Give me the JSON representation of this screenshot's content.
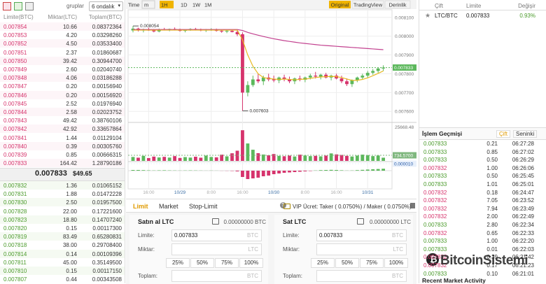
{
  "header": {
    "group_label": "gruplar",
    "decimals": "6 ondalık"
  },
  "order_book": {
    "columns": [
      "Limite(BTC)",
      "Miktar(LTC)",
      "Toplam(BTC)"
    ],
    "asks": [
      [
        "0.007854",
        "10.66",
        "0.08372364"
      ],
      [
        "0.007853",
        "4.20",
        "0.03298260"
      ],
      [
        "0.007852",
        "4.50",
        "0.03533400"
      ],
      [
        "0.007851",
        "2.37",
        "0.01860687"
      ],
      [
        "0.007850",
        "39.42",
        "0.30944700"
      ],
      [
        "0.007849",
        "2.60",
        "0.02040740"
      ],
      [
        "0.007848",
        "4.06",
        "0.03186288"
      ],
      [
        "0.007847",
        "0.20",
        "0.00156940"
      ],
      [
        "0.007846",
        "0.20",
        "0.00156920"
      ],
      [
        "0.007845",
        "2.52",
        "0.01976940"
      ],
      [
        "0.007844",
        "2.58",
        "0.02023752"
      ],
      [
        "0.007843",
        "49.42",
        "0.38760106"
      ],
      [
        "0.007842",
        "42.92",
        "0.33657864"
      ],
      [
        "0.007841",
        "1.44",
        "0.01129104"
      ],
      [
        "0.007840",
        "0.39",
        "0.00305760"
      ],
      [
        "0.007839",
        "0.85",
        "0.00666315"
      ],
      [
        "0.007833",
        "164.42",
        "1.28790186"
      ]
    ],
    "last_price": "0.007833",
    "last_usd": "$49.65",
    "bids": [
      [
        "0.007832",
        "1.36",
        "0.01065152"
      ],
      [
        "0.007831",
        "1.88",
        "0.01472228"
      ],
      [
        "0.007830",
        "2.50",
        "0.01957500"
      ],
      [
        "0.007828",
        "22.00",
        "0.17221600"
      ],
      [
        "0.007823",
        "18.80",
        "0.14707240"
      ],
      [
        "0.007820",
        "0.15",
        "0.00117300"
      ],
      [
        "0.007819",
        "83.49",
        "0.65280831"
      ],
      [
        "0.007818",
        "38.00",
        "0.29708400"
      ],
      [
        "0.007814",
        "0.14",
        "0.00109396"
      ],
      [
        "0.007811",
        "45.00",
        "0.35149500"
      ],
      [
        "0.007810",
        "0.15",
        "0.00117150"
      ],
      [
        "0.007807",
        "0.44",
        "0.00343508"
      ]
    ]
  },
  "chart_data": {
    "type": "candlestick",
    "toolbar": [
      "Time",
      "m",
      "1H",
      "1D",
      "1W",
      "1M"
    ],
    "views": [
      "Original",
      "TradingView",
      "Derinlik"
    ],
    "ylim": [
      0.00756,
      0.00814
    ],
    "yticks": [
      {
        "value": 0.0081,
        "label": "0.008100"
      },
      {
        "value": 0.008,
        "label": "0.008000"
      },
      {
        "value": 0.0079,
        "label": "0.007900"
      },
      {
        "value": 0.0078,
        "label": "0.007800"
      },
      {
        "value": 0.0077,
        "label": "0.007700"
      },
      {
        "value": 0.0076,
        "label": "0.007600"
      }
    ],
    "xticks": [
      {
        "value": 3,
        "label": "16:00"
      },
      {
        "value": 9,
        "label": "10/29"
      },
      {
        "value": 15,
        "label": "8:00"
      },
      {
        "value": 21,
        "label": "16:00"
      },
      {
        "value": 27,
        "label": "10/30"
      },
      {
        "value": 33,
        "label": "8:00"
      },
      {
        "value": 39,
        "label": "16:00"
      },
      {
        "value": 45,
        "label": "10/31"
      }
    ],
    "last_tag": {
      "value": 0.007833,
      "label": "0.007833"
    },
    "annotations": [
      {
        "x": 0,
        "value": 0.008054,
        "label": "0.008054"
      },
      {
        "x": 21,
        "value": 0.007603,
        "label": "0.007603"
      }
    ],
    "candles": [
      [
        0.00803,
        0.008054,
        0.00802,
        0.00804
      ],
      [
        0.00804,
        0.008045,
        0.008025,
        0.00803
      ],
      [
        0.00803,
        0.00804,
        0.00802,
        0.008035
      ],
      [
        0.008035,
        0.008045,
        0.008028,
        0.00803
      ],
      [
        0.00803,
        0.008038,
        0.00802,
        0.008025
      ],
      [
        0.008025,
        0.00804,
        0.00802,
        0.008036
      ],
      [
        0.008036,
        0.008044,
        0.00803,
        0.008032
      ],
      [
        0.008032,
        0.00804,
        0.008026,
        0.008038
      ],
      [
        0.008038,
        0.008046,
        0.00803,
        0.008034
      ],
      [
        0.008034,
        0.00804,
        0.008024,
        0.008028
      ],
      [
        0.008028,
        0.008036,
        0.00802,
        0.008032
      ],
      [
        0.008032,
        0.008042,
        0.008028,
        0.008038
      ],
      [
        0.008038,
        0.008044,
        0.00803,
        0.008034
      ],
      [
        0.008034,
        0.00804,
        0.008026,
        0.00803
      ],
      [
        0.00803,
        0.008038,
        0.008022,
        0.008034
      ],
      [
        0.008034,
        0.008042,
        0.008028,
        0.008036
      ],
      [
        0.008036,
        0.00804,
        0.008024,
        0.008028
      ],
      [
        0.008028,
        0.008034,
        0.008018,
        0.008024
      ],
      [
        0.008024,
        0.008032,
        0.008016,
        0.008028
      ],
      [
        0.008028,
        0.008034,
        0.00802,
        0.008022
      ],
      [
        0.008022,
        0.00803,
        0.008,
        0.00801
      ],
      [
        0.00801,
        0.00802,
        0.007603,
        0.0077
      ],
      [
        0.0077,
        0.00776,
        0.00768,
        0.00774
      ],
      [
        0.00774,
        0.00779,
        0.00773,
        0.00777
      ],
      [
        0.00777,
        0.0078,
        0.00775,
        0.00776
      ],
      [
        0.00776,
        0.00779,
        0.00774,
        0.00778
      ],
      [
        0.00778,
        0.0078,
        0.00776,
        0.00777
      ],
      [
        0.00777,
        0.00779,
        0.007755,
        0.007765
      ],
      [
        0.007765,
        0.007785,
        0.00775,
        0.00778
      ],
      [
        0.00778,
        0.007795,
        0.00776,
        0.00777
      ],
      [
        0.00777,
        0.007785,
        0.00775,
        0.00776
      ],
      [
        0.00776,
        0.00778,
        0.007745,
        0.007775
      ],
      [
        0.007775,
        0.00779,
        0.00776,
        0.007768
      ],
      [
        0.007768,
        0.007785,
        0.007755,
        0.00778
      ],
      [
        0.00778,
        0.0078,
        0.00777,
        0.00779
      ],
      [
        0.00779,
        0.00781,
        0.007775,
        0.007785
      ],
      [
        0.007785,
        0.0078,
        0.00777,
        0.007795
      ],
      [
        0.007795,
        0.007805,
        0.007775,
        0.00778
      ],
      [
        0.00778,
        0.007795,
        0.007765,
        0.00779
      ],
      [
        0.00779,
        0.0078,
        0.00777,
        0.007775
      ],
      [
        0.007775,
        0.00779,
        0.00775,
        0.00776
      ],
      [
        0.00776,
        0.007775,
        0.007735,
        0.007745
      ],
      [
        0.007745,
        0.00777,
        0.00773,
        0.007765
      ],
      [
        0.007765,
        0.007785,
        0.007755,
        0.00778
      ],
      [
        0.00778,
        0.0078,
        0.00777,
        0.00779
      ],
      [
        0.00779,
        0.007815,
        0.00778,
        0.007805
      ],
      [
        0.007805,
        0.007825,
        0.007795,
        0.007815
      ],
      [
        0.007815,
        0.007835,
        0.007805,
        0.007828
      ],
      [
        0.007828,
        0.007845,
        0.007815,
        0.007833
      ]
    ],
    "ma_long": [
      0.008035,
      0.008035,
      0.008035,
      0.008035,
      0.008035,
      0.008035,
      0.008035,
      0.008035,
      0.008035,
      0.008035,
      0.008035,
      0.008035,
      0.008035,
      0.008035,
      0.008035,
      0.008035,
      0.008035,
      0.008035,
      0.008035,
      0.008035,
      0.008035,
      0.00803,
      0.00802,
      0.008012,
      0.008005,
      0.007998,
      0.007992,
      0.007986,
      0.007981,
      0.007976,
      0.007972,
      0.007968,
      0.007964,
      0.007961,
      0.007958,
      0.007955,
      0.007952,
      0.00795,
      0.007948,
      0.007946,
      0.007944,
      0.007942,
      0.00794,
      0.007938,
      0.007936,
      0.007934,
      0.007932,
      0.00793,
      0.007928
    ],
    "ma_short": [
      0.008032,
      0.008032,
      0.008032,
      0.008032,
      0.008032,
      0.008032,
      0.008032,
      0.008032,
      0.008032,
      0.008032,
      0.008032,
      0.008032,
      0.008032,
      0.008032,
      0.008032,
      0.008032,
      0.008032,
      0.008032,
      0.008032,
      0.008032,
      0.008032,
      0.00798,
      0.0079,
      0.00784,
      0.0078,
      0.00778,
      0.007775,
      0.007772,
      0.00777,
      0.007772,
      0.00777,
      0.007768,
      0.00777,
      0.007772,
      0.007775,
      0.00778,
      0.007783,
      0.007785,
      0.007786,
      0.007785,
      0.00778,
      0.007772,
      0.007765,
      0.007765,
      0.00777,
      0.007778,
      0.00779,
      0.007802,
      0.007815
    ],
    "ma_long_color": "#c2418f",
    "ma_short_color": "#e8b923",
    "up_color": "#5cb85c",
    "down_color": "#d6336c",
    "volume": [
      3200,
      2600,
      4100,
      2300,
      3500,
      2800,
      3300,
      2700,
      3900,
      2400,
      3100,
      2700,
      3400,
      2600,
      4300,
      3200,
      2900,
      5100,
      3700,
      6200,
      8300,
      25000,
      14200,
      9100,
      6300,
      5200,
      4600,
      5600,
      4100,
      3800,
      4300,
      3600,
      5100,
      4400,
      3900,
      4100,
      3700,
      4300,
      6100,
      5300,
      4900,
      4100,
      3600,
      4300,
      5100,
      4700,
      3900,
      4400,
      2600
    ],
    "vol_lim": [
      0,
      25668.48
    ],
    "vol_ticks": [
      25668.48
    ],
    "vol_tag": {
      "value": 734.57,
      "label": "734.5700"
    },
    "macd": [
      1e-06,
      1e-06,
      8e-07,
      5e-07,
      3e-07,
      5e-07,
      6e-07,
      4e-07,
      3e-07,
      2e-07,
      3e-07,
      4e-07,
      3e-07,
      2e-07,
      1e-07,
      2e-07,
      1e-07,
      -1e-07,
      -2e-07,
      -4e-07,
      -1e-06,
      -9e-06,
      -1.2e-05,
      -1.1e-05,
      -1e-05,
      -8e-06,
      -7e-06,
      -5e-06,
      -4e-06,
      -3e-06,
      -2.5e-06,
      -2e-06,
      -1.5e-06,
      -1e-06,
      -5e-07,
      3e-07,
      8e-07,
      1e-06,
      1.2e-06,
      1e-06,
      6e-07,
      2e-07,
      3e-07,
      8e-07,
      1.2e-06,
      1.6e-06,
      2e-06,
      2.4e-06,
      2.8e-06
    ],
    "macd_lim": [
      -2.4e-05,
      1.2e-05
    ],
    "macd_tag": {
      "value": 1e-05,
      "label": "0.000010"
    }
  },
  "order_form": {
    "tabs": [
      "Limit",
      "Market",
      "Stop-Limit"
    ],
    "vip": "VIP",
    "fee": "Ücret: Taker ( 0.0750%) / Maker ( 0.0750%)",
    "buy": {
      "title": "Satın al LTC",
      "balance": "0.00000000 BTC",
      "limit": {
        "label": "Limite:",
        "value": "0.007833",
        "unit": "BTC"
      },
      "amount": {
        "label": "Miktar:",
        "unit": "LTC"
      },
      "percents": [
        "25%",
        "50%",
        "75%",
        "100%"
      ],
      "total": {
        "label": "Toplam:",
        "unit": "BTC"
      }
    },
    "sell": {
      "title": "Sat LTC",
      "balance": "0.00000000 LTC",
      "limit": {
        "label": "Limite:",
        "value": "0.007833",
        "unit": "BTC"
      },
      "amount": {
        "label": "Miktar:",
        "unit": "LTC"
      },
      "percents": [
        "25%",
        "50%",
        "75%",
        "100%"
      ],
      "total": {
        "label": "Toplam:",
        "unit": "BTC"
      }
    }
  },
  "market": {
    "columns": [
      "Çift",
      "Limite",
      "Değişir"
    ],
    "rows": [
      [
        "LTC/BTC",
        "0.007833",
        "0.93%"
      ]
    ]
  },
  "trade_history": {
    "title": "İşlem Geçmişi",
    "tabs": [
      "Çift",
      "Seninki"
    ],
    "rows": [
      [
        "0.007833",
        "0.21",
        "06:27:28"
      ],
      [
        "0.007833",
        "0.85",
        "06:27:02"
      ],
      [
        "0.007833",
        "0.50",
        "06:26:29"
      ],
      [
        "0.007832",
        "1.00",
        "06:26:06"
      ],
      [
        "0.007833",
        "0.50",
        "06:25:45"
      ],
      [
        "0.007833",
        "1.01",
        "06:25:01"
      ],
      [
        "0.007832",
        "0.18",
        "06:24:47"
      ],
      [
        "0.007832",
        "7.05",
        "06:23:52"
      ],
      [
        "0.007832",
        "7.94",
        "06:23:49"
      ],
      [
        "0.007832",
        "2.00",
        "06:22:49"
      ],
      [
        "0.007833",
        "2.80",
        "06:22:34"
      ],
      [
        "0.007832",
        "0.65",
        "06:22:33"
      ],
      [
        "0.007833",
        "1.00",
        "06:22:20"
      ],
      [
        "0.007833",
        "0.01",
        "06:22:03"
      ],
      [
        "0.007832",
        "0.39",
        "06:21:42"
      ],
      [
        "0.007832",
        "0.17",
        "06:21:23"
      ],
      [
        "0.007833",
        "0.10",
        "06:21:01"
      ]
    ],
    "recent": "Recent Market Activity"
  },
  "watermark": "BitcoinSistemi"
}
